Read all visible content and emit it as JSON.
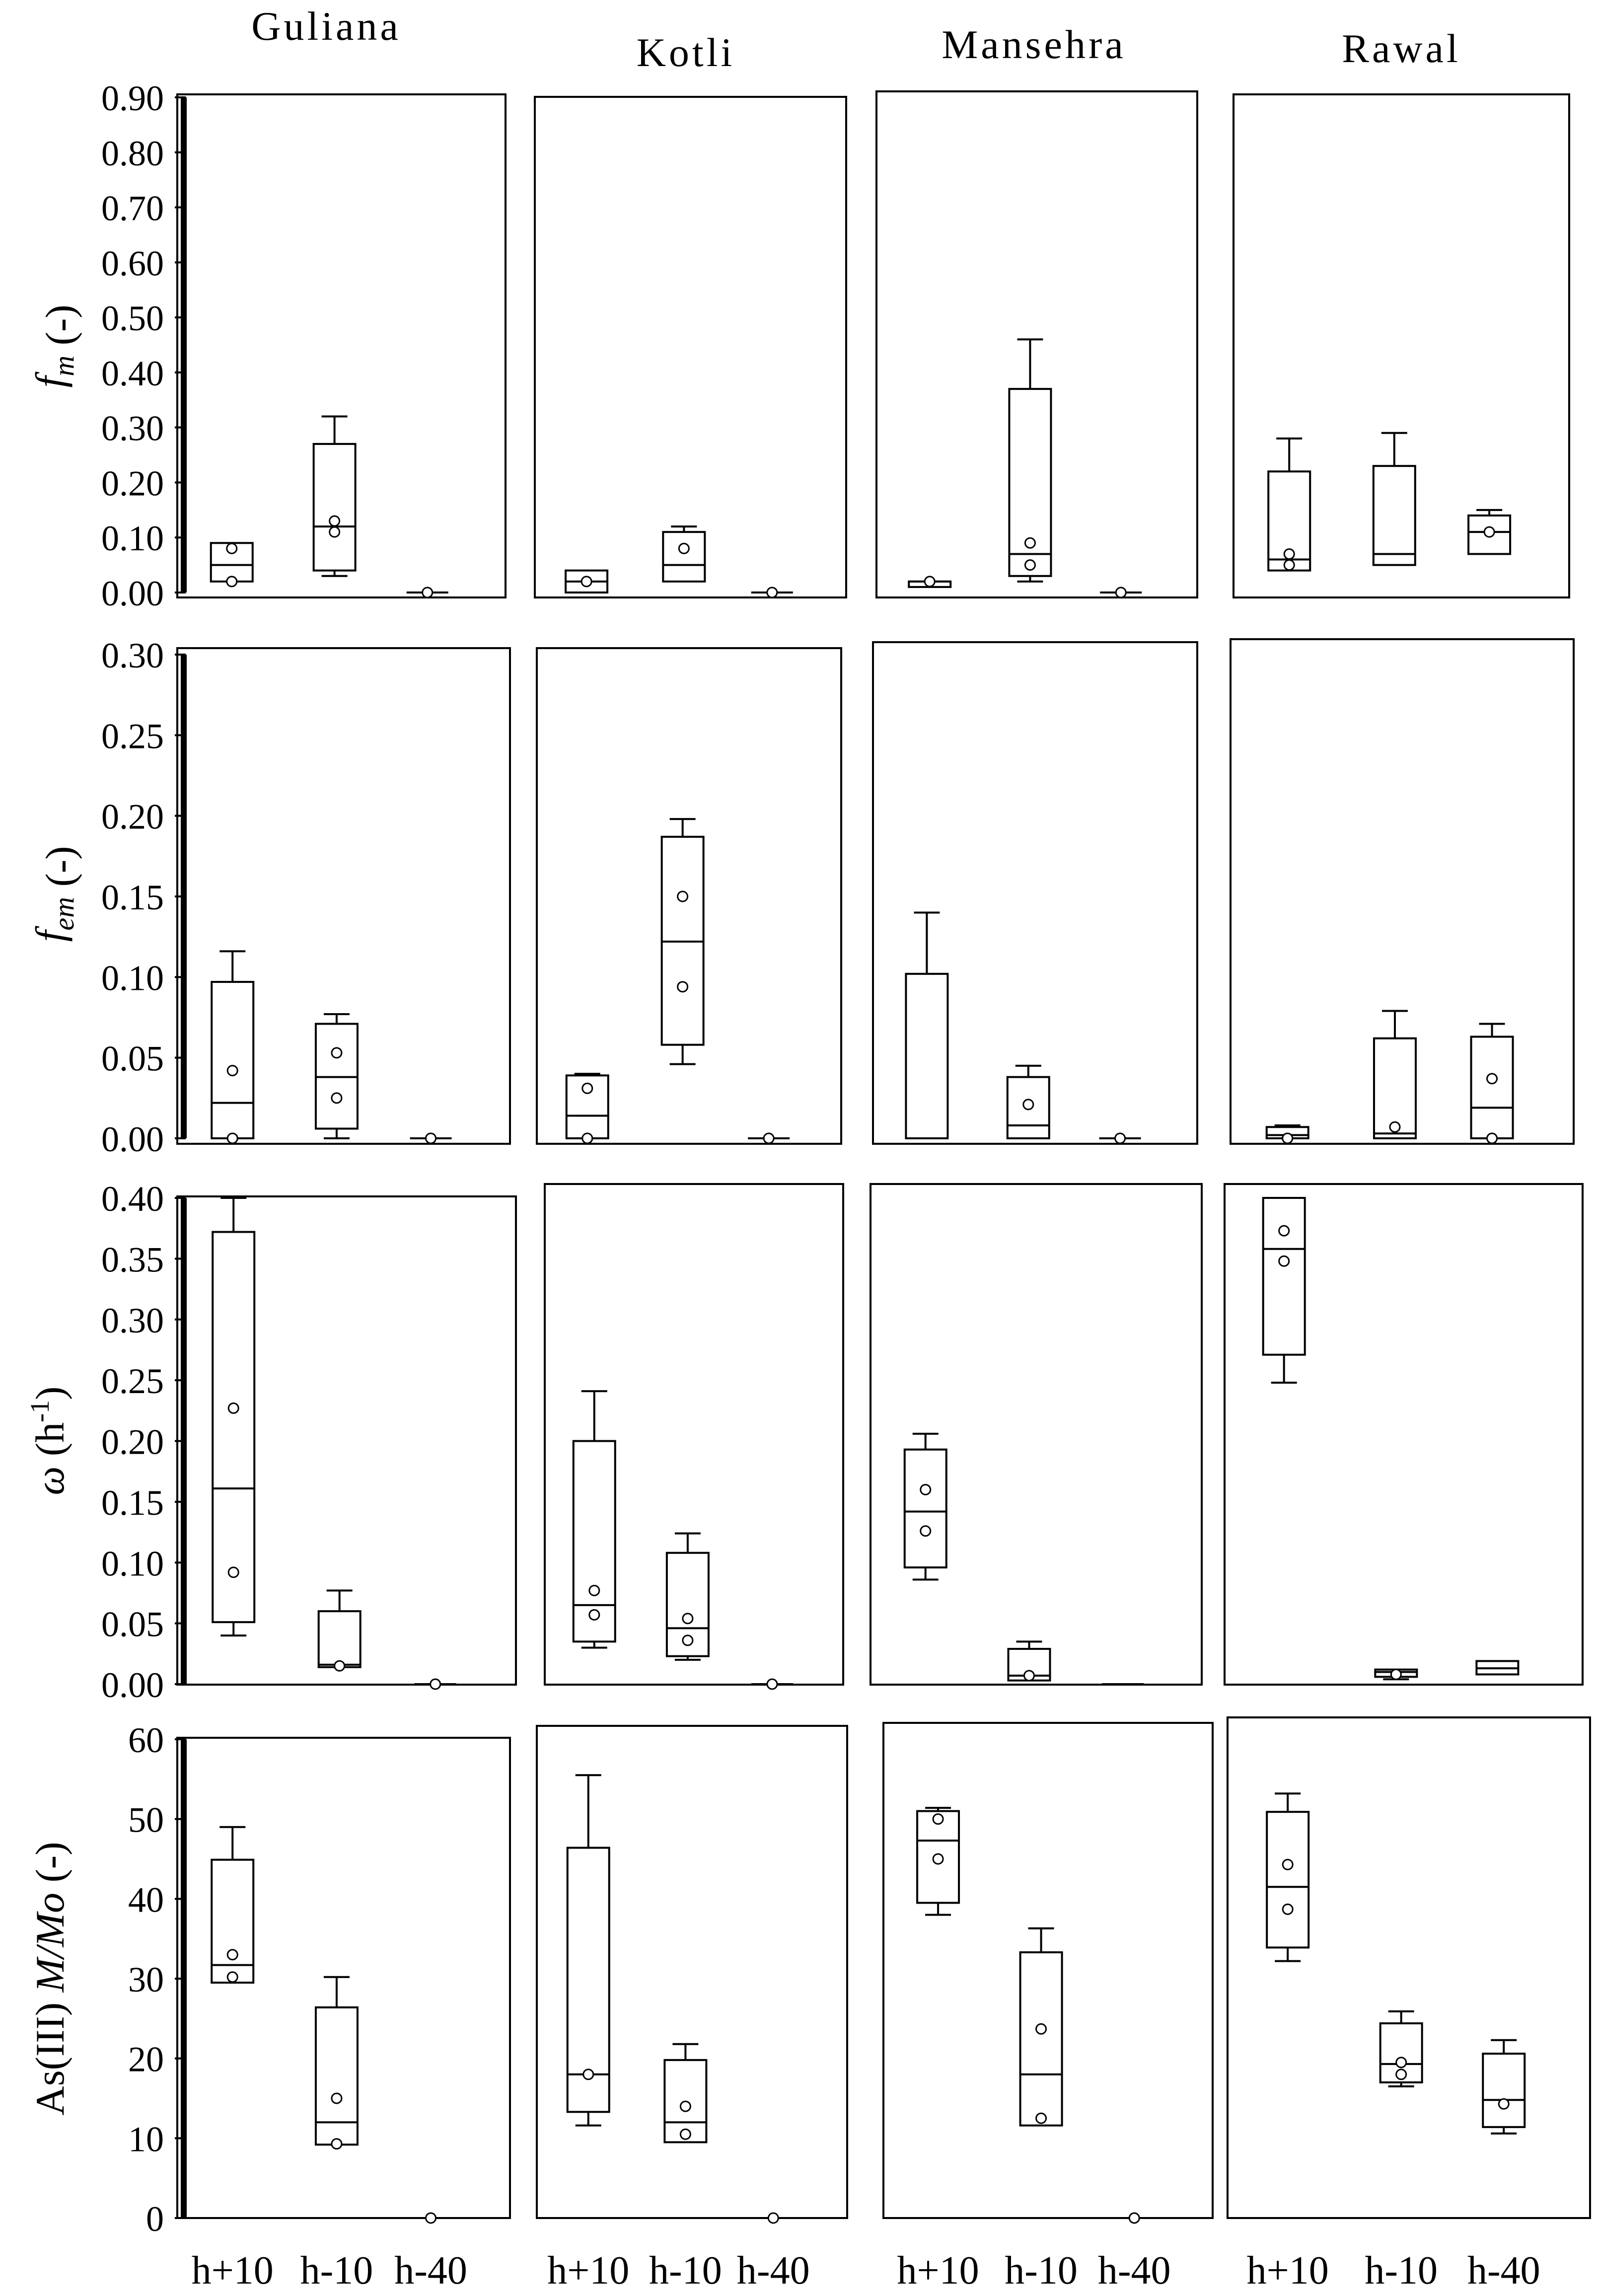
{
  "figure": {
    "colors": {
      "ink": "#000000",
      "background": "#ffffff"
    },
    "sites": [
      "Guliana",
      "Kotli",
      "Mansehra",
      "Rawal"
    ],
    "categories": [
      "h+10",
      "h-10",
      "h-40"
    ]
  },
  "chart_data": [
    {
      "type": "box",
      "row": 0,
      "ylabel": {
        "main": "f",
        "sub": "m",
        "unit": " (-)"
      },
      "ylim": [
        0,
        0.9
      ],
      "yticks": [
        "0.00",
        "0.10",
        "0.20",
        "0.30",
        "0.40",
        "0.50",
        "0.60",
        "0.70",
        "0.80",
        "0.90"
      ],
      "tickValues": [
        0,
        0.1,
        0.2,
        0.3,
        0.4,
        0.5,
        0.6,
        0.7,
        0.8,
        0.9
      ],
      "panels": [
        {
          "site": "Guliana",
          "boxes": [
            {
              "category": "h+10",
              "whisker_low": 0.02,
              "q1": 0.02,
              "median": 0.05,
              "q3": 0.09,
              "whisker_high": 0.09,
              "points": [
                0.02,
                0.08
              ]
            },
            {
              "category": "h-10",
              "whisker_low": 0.03,
              "q1": 0.04,
              "median": 0.12,
              "q3": 0.27,
              "whisker_high": 0.32,
              "points": [
                0.11,
                0.13
              ]
            },
            {
              "category": "h-40",
              "whisker_low": 0.0,
              "q1": 0.0,
              "median": 0.0,
              "q3": 0.0,
              "whisker_high": 0.0,
              "points": [
                0.0
              ]
            }
          ]
        },
        {
          "site": "Kotli",
          "boxes": [
            {
              "category": "h+10",
              "whisker_low": 0.0,
              "q1": 0.0,
              "median": 0.02,
              "q3": 0.04,
              "whisker_high": 0.04,
              "points": [
                0.02
              ]
            },
            {
              "category": "h-10",
              "whisker_low": 0.02,
              "q1": 0.02,
              "median": 0.05,
              "q3": 0.11,
              "whisker_high": 0.12,
              "points": [
                0.08
              ]
            },
            {
              "category": "h-40",
              "whisker_low": 0.0,
              "q1": 0.0,
              "median": 0.0,
              "q3": 0.0,
              "whisker_high": 0.0,
              "points": [
                0.0
              ]
            }
          ]
        },
        {
          "site": "Mansehra",
          "boxes": [
            {
              "category": "h+10",
              "whisker_low": 0.01,
              "q1": 0.01,
              "median": 0.02,
              "q3": 0.02,
              "whisker_high": 0.02,
              "points": [
                0.02
              ]
            },
            {
              "category": "h-10",
              "whisker_low": 0.02,
              "q1": 0.03,
              "median": 0.07,
              "q3": 0.37,
              "whisker_high": 0.46,
              "points": [
                0.05,
                0.09
              ]
            },
            {
              "category": "h-40",
              "whisker_low": 0.0,
              "q1": 0.0,
              "median": 0.0,
              "q3": 0.0,
              "whisker_high": 0.0,
              "points": [
                0.0
              ]
            }
          ]
        },
        {
          "site": "Rawal",
          "boxes": [
            {
              "category": "h+10",
              "whisker_low": 0.04,
              "q1": 0.04,
              "median": 0.06,
              "q3": 0.22,
              "whisker_high": 0.28,
              "points": [
                0.05,
                0.07
              ]
            },
            {
              "category": "h-10",
              "whisker_low": 0.05,
              "q1": 0.05,
              "median": 0.07,
              "q3": 0.23,
              "whisker_high": 0.29,
              "points": []
            },
            {
              "category": "h-40",
              "whisker_low": 0.07,
              "q1": 0.07,
              "median": 0.11,
              "q3": 0.14,
              "whisker_high": 0.15,
              "points": [
                0.11
              ]
            }
          ]
        }
      ]
    },
    {
      "type": "box",
      "row": 1,
      "ylabel": {
        "main": "f",
        "sub": "em",
        "unit": " (-)"
      },
      "ylim": [
        0,
        0.3
      ],
      "yticks": [
        "0.00",
        "0.05",
        "0.10",
        "0.15",
        "0.20",
        "0.25",
        "0.30"
      ],
      "tickValues": [
        0,
        0.05,
        0.1,
        0.15,
        0.2,
        0.25,
        0.3
      ],
      "panels": [
        {
          "site": "Guliana",
          "boxes": [
            {
              "category": "h+10",
              "whisker_low": 0.0,
              "q1": 0.0,
              "median": 0.022,
              "q3": 0.097,
              "whisker_high": 0.116,
              "points": [
                0.0,
                0.042
              ]
            },
            {
              "category": "h-10",
              "whisker_low": 0.0,
              "q1": 0.006,
              "median": 0.038,
              "q3": 0.071,
              "whisker_high": 0.077,
              "points": [
                0.025,
                0.053
              ]
            },
            {
              "category": "h-40",
              "whisker_low": 0.0,
              "q1": 0.0,
              "median": 0.0,
              "q3": 0.0,
              "whisker_high": 0.0,
              "points": [
                0.0
              ]
            }
          ]
        },
        {
          "site": "Kotli",
          "boxes": [
            {
              "category": "h+10",
              "whisker_low": 0.0,
              "q1": 0.0,
              "median": 0.014,
              "q3": 0.039,
              "whisker_high": 0.04,
              "points": [
                0.0,
                0.031
              ]
            },
            {
              "category": "h-10",
              "whisker_low": 0.046,
              "q1": 0.058,
              "median": 0.122,
              "q3": 0.187,
              "whisker_high": 0.198,
              "points": [
                0.094,
                0.15
              ]
            },
            {
              "category": "h-40",
              "whisker_low": 0.0,
              "q1": 0.0,
              "median": 0.0,
              "q3": 0.0,
              "whisker_high": 0.0,
              "points": [
                0.0
              ]
            }
          ]
        },
        {
          "site": "Mansehra",
          "boxes": [
            {
              "category": "h+10",
              "whisker_low": 0.0,
              "q1": 0.0,
              "median": 0.0,
              "q3": 0.102,
              "whisker_high": 0.14,
              "points": []
            },
            {
              "category": "h-10",
              "whisker_low": 0.0,
              "q1": 0.0,
              "median": 0.008,
              "q3": 0.038,
              "whisker_high": 0.045,
              "points": [
                0.021
              ]
            },
            {
              "category": "h-40",
              "whisker_low": 0.0,
              "q1": 0.0,
              "median": 0.0,
              "q3": 0.0,
              "whisker_high": 0.0,
              "points": [
                0.0
              ]
            }
          ]
        },
        {
          "site": "Rawal",
          "boxes": [
            {
              "category": "h+10",
              "whisker_low": 0.0,
              "q1": 0.0,
              "median": 0.002,
              "q3": 0.007,
              "whisker_high": 0.008,
              "points": [
                0.0
              ]
            },
            {
              "category": "h-10",
              "whisker_low": 0.0,
              "q1": 0.0,
              "median": 0.003,
              "q3": 0.062,
              "whisker_high": 0.079,
              "points": [
                0.007
              ]
            },
            {
              "category": "h-40",
              "whisker_low": 0.0,
              "q1": 0.0,
              "median": 0.019,
              "q3": 0.063,
              "whisker_high": 0.071,
              "points": [
                0.0,
                0.037
              ]
            }
          ]
        }
      ]
    },
    {
      "type": "box",
      "row": 2,
      "ylabel": {
        "main": "ω",
        "unit": " (h",
        "sup": "-1",
        "close": ")"
      },
      "ylim": [
        0,
        0.4
      ],
      "yticks": [
        "0.00",
        "0.05",
        "0.10",
        "0.15",
        "0.20",
        "0.25",
        "0.30",
        "0.35",
        "0.40"
      ],
      "tickValues": [
        0,
        0.05,
        0.1,
        0.15,
        0.2,
        0.25,
        0.3,
        0.35,
        0.4
      ],
      "panels": [
        {
          "site": "Guliana",
          "boxes": [
            {
              "category": "h+10",
              "whisker_low": 0.04,
              "q1": 0.051,
              "median": 0.161,
              "q3": 0.372,
              "whisker_high": 0.4,
              "points": [
                0.092,
                0.227
              ]
            },
            {
              "category": "h-10",
              "whisker_low": 0.014,
              "q1": 0.014,
              "median": 0.016,
              "q3": 0.06,
              "whisker_high": 0.077,
              "points": [
                0.015
              ]
            },
            {
              "category": "h-40",
              "whisker_low": 0.0,
              "q1": 0.0,
              "median": 0.0,
              "q3": 0.0,
              "whisker_high": 0.0,
              "points": [
                0.0
              ]
            }
          ]
        },
        {
          "site": "Kotli",
          "boxes": [
            {
              "category": "h+10",
              "whisker_low": 0.03,
              "q1": 0.035,
              "median": 0.065,
              "q3": 0.2,
              "whisker_high": 0.241,
              "points": [
                0.057,
                0.077
              ]
            },
            {
              "category": "h-10",
              "whisker_low": 0.02,
              "q1": 0.023,
              "median": 0.046,
              "q3": 0.108,
              "whisker_high": 0.124,
              "points": [
                0.036,
                0.054
              ]
            },
            {
              "category": "h-40",
              "whisker_low": 0.0,
              "q1": 0.0,
              "median": 0.0,
              "q3": 0.0,
              "whisker_high": 0.0,
              "points": [
                0.0
              ]
            }
          ]
        },
        {
          "site": "Mansehra",
          "boxes": [
            {
              "category": "h+10",
              "whisker_low": 0.086,
              "q1": 0.096,
              "median": 0.142,
              "q3": 0.193,
              "whisker_high": 0.206,
              "points": [
                0.126,
                0.16
              ]
            },
            {
              "category": "h-10",
              "whisker_low": 0.003,
              "q1": 0.003,
              "median": 0.007,
              "q3": 0.029,
              "whisker_high": 0.035,
              "points": [
                0.007
              ]
            },
            {
              "category": "h-40",
              "whisker_low": 0.0,
              "q1": 0.0,
              "median": 0.0,
              "q3": 0.0,
              "whisker_high": 0.0,
              "points": []
            }
          ]
        },
        {
          "site": "Rawal",
          "boxes": [
            {
              "category": "h+10",
              "whisker_low": 0.248,
              "q1": 0.271,
              "median": 0.358,
              "q3": 0.4,
              "whisker_high": 0.4,
              "points": [
                0.348,
                0.373
              ]
            },
            {
              "category": "h-10",
              "whisker_low": 0.004,
              "q1": 0.006,
              "median": 0.01,
              "q3": 0.012,
              "whisker_high": 0.012,
              "points": [
                0.008
              ]
            },
            {
              "category": "h-40",
              "whisker_low": 0.008,
              "q1": 0.008,
              "median": 0.013,
              "q3": 0.019,
              "whisker_high": 0.019,
              "points": []
            }
          ]
        }
      ]
    },
    {
      "type": "box",
      "row": 3,
      "ylabel": {
        "main": "As(III) ",
        "italic": "M/Mo",
        "unit": " (-)"
      },
      "ylim": [
        0,
        60
      ],
      "yticks": [
        "0",
        "10",
        "20",
        "30",
        "40",
        "50",
        "60"
      ],
      "tickValues": [
        0,
        10,
        20,
        30,
        40,
        50,
        60
      ],
      "panels": [
        {
          "site": "Guliana",
          "boxes": [
            {
              "category": "h+10",
              "whisker_low": 29.5,
              "q1": 29.5,
              "median": 31.7,
              "q3": 44.9,
              "whisker_high": 49.0,
              "points": [
                30.2,
                33.0
              ]
            },
            {
              "category": "h-10",
              "whisker_low": 9.2,
              "q1": 9.2,
              "median": 12.0,
              "q3": 26.4,
              "whisker_high": 30.2,
              "points": [
                9.3,
                15.0
              ]
            },
            {
              "category": "h-40",
              "whisker_low": 0.0,
              "q1": 0.0,
              "median": 0.0,
              "q3": 0.0,
              "whisker_high": 0.0,
              "points": [
                0.0
              ]
            }
          ]
        },
        {
          "site": "Kotli",
          "boxes": [
            {
              "category": "h+10",
              "whisker_low": 11.6,
              "q1": 13.3,
              "median": 18.0,
              "q3": 46.4,
              "whisker_high": 55.5,
              "points": [
                18.0
              ]
            },
            {
              "category": "h-10",
              "whisker_low": 9.5,
              "q1": 9.5,
              "median": 12.0,
              "q3": 19.8,
              "whisker_high": 21.8,
              "points": [
                10.5,
                14.0
              ]
            },
            {
              "category": "h-40",
              "whisker_low": 0.0,
              "q1": 0.0,
              "median": 0.0,
              "q3": 0.0,
              "whisker_high": 0.0,
              "points": [
                0.0
              ]
            }
          ]
        },
        {
          "site": "Mansehra",
          "boxes": [
            {
              "category": "h+10",
              "whisker_low": 38.0,
              "q1": 39.5,
              "median": 47.3,
              "q3": 51.0,
              "whisker_high": 51.4,
              "points": [
                45.0,
                50.0
              ]
            },
            {
              "category": "h-10",
              "whisker_low": 11.6,
              "q1": 11.6,
              "median": 18.0,
              "q3": 33.3,
              "whisker_high": 36.3,
              "points": [
                12.5,
                23.7
              ]
            },
            {
              "category": "h-40",
              "whisker_low": 0.0,
              "q1": 0.0,
              "median": 0.0,
              "q3": 0.0,
              "whisker_high": 0.0,
              "points": [
                0.0
              ]
            }
          ]
        },
        {
          "site": "Rawal",
          "boxes": [
            {
              "category": "h+10",
              "whisker_low": 32.2,
              "q1": 33.9,
              "median": 41.5,
              "q3": 50.9,
              "whisker_high": 53.2,
              "points": [
                38.7,
                44.3
              ]
            },
            {
              "category": "h-10",
              "whisker_low": 16.5,
              "q1": 17.0,
              "median": 19.3,
              "q3": 24.4,
              "whisker_high": 25.9,
              "points": [
                18.0,
                19.5
              ]
            },
            {
              "category": "h-40",
              "whisker_low": 10.6,
              "q1": 11.4,
              "median": 14.8,
              "q3": 20.6,
              "whisker_high": 22.3,
              "points": [
                14.3
              ]
            }
          ]
        }
      ]
    }
  ]
}
